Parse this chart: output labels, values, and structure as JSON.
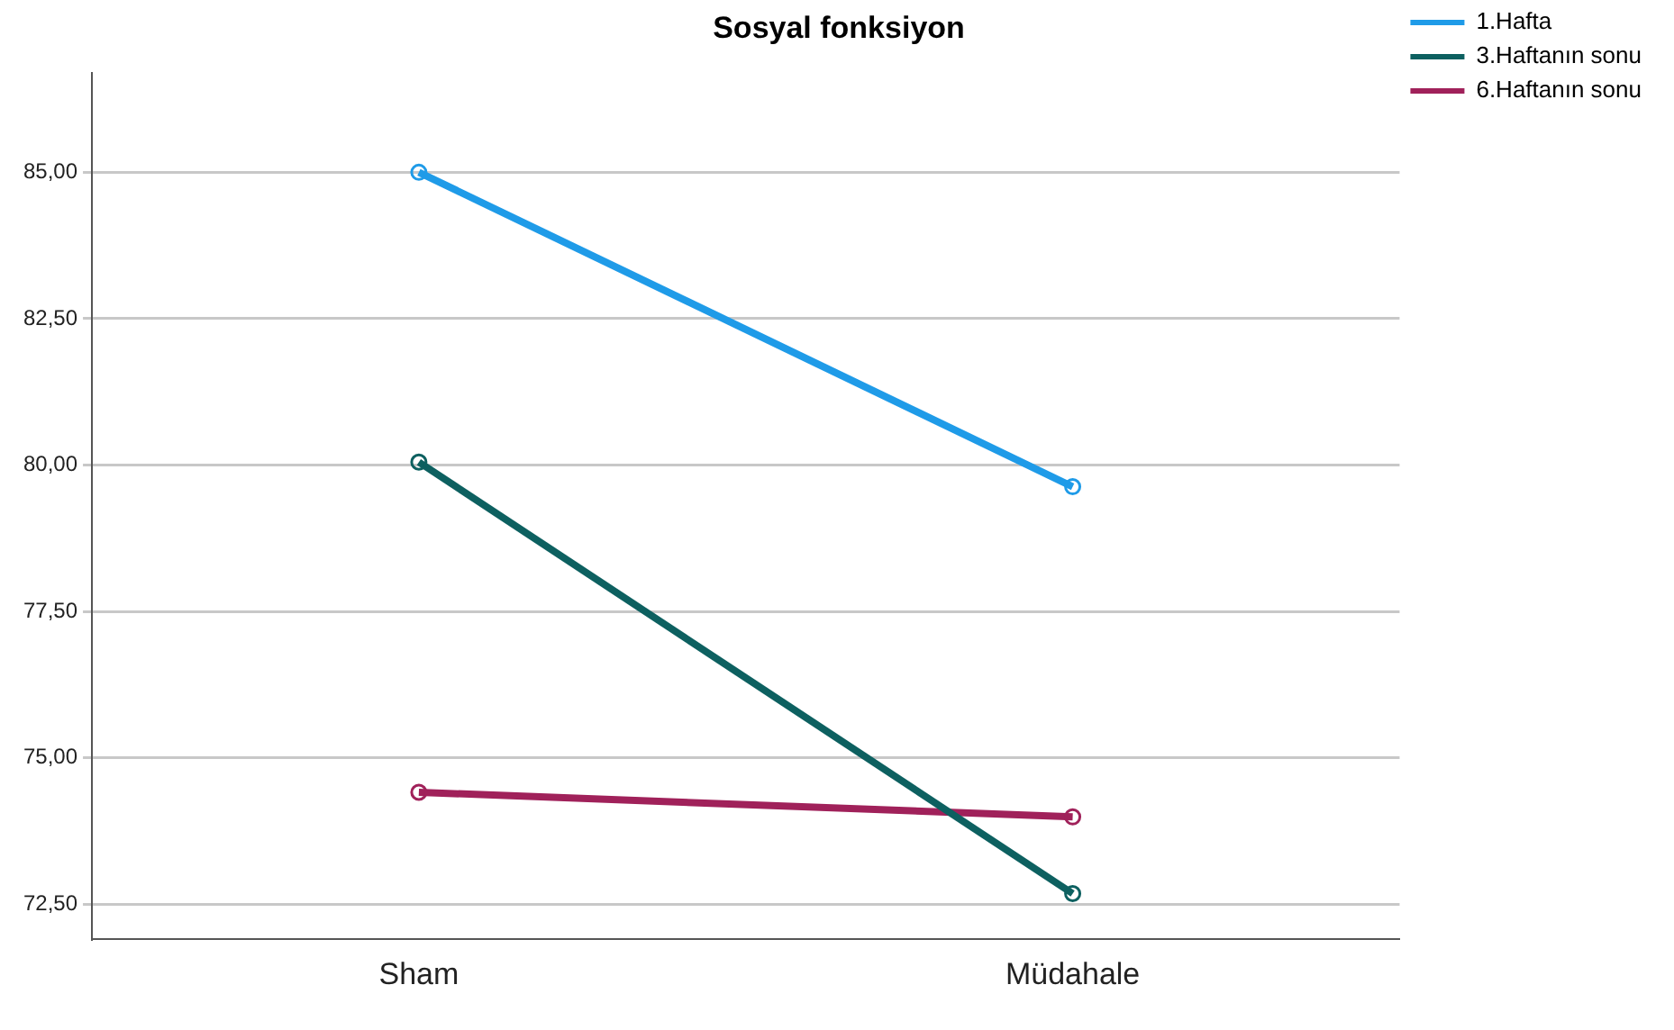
{
  "chart_data": {
    "type": "line",
    "title": "Sosyal fonksiyon",
    "categories": [
      "Sham",
      "Müdahale"
    ],
    "series": [
      {
        "name": "1.Hafta",
        "color": "#1f9be8",
        "values": [
          85.0,
          79.63
        ]
      },
      {
        "name": "3.Haftanın sonu",
        "color": "#0d6060",
        "values": [
          80.05,
          72.68
        ]
      },
      {
        "name": "6.Haftanın sonu",
        "color": "#a0215a",
        "values": [
          74.41,
          73.99
        ]
      }
    ],
    "ylim": [
      71.9,
      86.7
    ],
    "yticks": [
      {
        "value": 72.5,
        "label": "72,50"
      },
      {
        "value": 75,
        "label": "75,00"
      },
      {
        "value": 77.5,
        "label": "77,50"
      },
      {
        "value": 80,
        "label": "80,00"
      },
      {
        "value": 82.5,
        "label": "82,50"
      },
      {
        "value": 85,
        "label": "85,00"
      }
    ],
    "grid": "y",
    "legend": "right",
    "marker": "circle",
    "line_style": "solid"
  }
}
